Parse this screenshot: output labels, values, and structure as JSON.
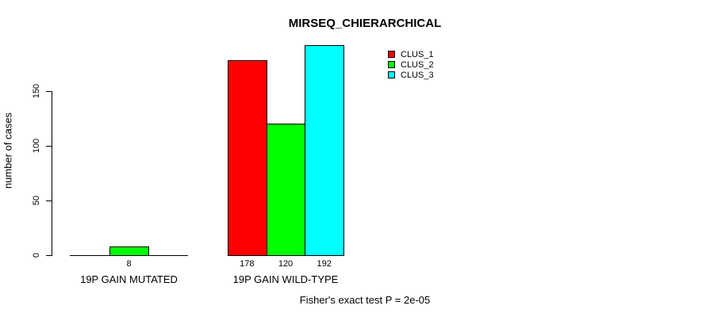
{
  "chart_data": {
    "type": "bar",
    "title": "MIRSEQ_CHIERARCHICAL",
    "ylabel": "number of cases",
    "xlabel": "",
    "ylim": [
      0,
      150
    ],
    "yticks": [
      0,
      50,
      100,
      150
    ],
    "grid": false,
    "legend_position": "top-right",
    "categories": [
      "19P GAIN MUTATED",
      "19P GAIN WILD-TYPE"
    ],
    "series": [
      {
        "name": "CLUS_1",
        "color": "#ff0000",
        "values": [
          0,
          178
        ]
      },
      {
        "name": "CLUS_2",
        "color": "#00ff00",
        "values": [
          8,
          120
        ]
      },
      {
        "name": "CLUS_3",
        "color": "#00ffff",
        "values": [
          0,
          192
        ]
      }
    ],
    "bar_value_labels": [
      [
        "",
        "8",
        ""
      ],
      [
        "178",
        "120",
        "192"
      ]
    ],
    "annotation": "Fisher's exact test P = 2e-05"
  },
  "colors": {
    "axis": "#000000",
    "background": "#ffffff",
    "clus_1": "#ff0000",
    "clus_2": "#00ff00",
    "clus_3": "#00ffff"
  }
}
